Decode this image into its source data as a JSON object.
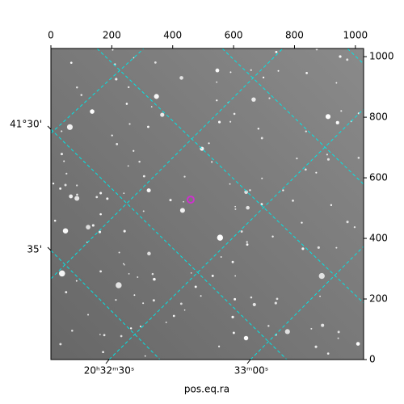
{
  "chart_data": {
    "type": "image",
    "xlabel": "pos.eq.ra",
    "xlim": [
      0,
      1027
    ],
    "xticks": [
      0,
      200,
      400,
      600,
      800,
      1000
    ],
    "ylim": [
      0,
      1027
    ],
    "yticks": [
      0,
      200,
      400,
      600,
      800,
      1000
    ],
    "ra_labels": [
      "20ʰ32ᵐ30ˢ",
      "33ᵐ00ˢ"
    ],
    "dec_labels": [
      "41°30'",
      "35'"
    ],
    "marker": {
      "x": 459,
      "y": 528,
      "color": "#cc33cc"
    }
  }
}
